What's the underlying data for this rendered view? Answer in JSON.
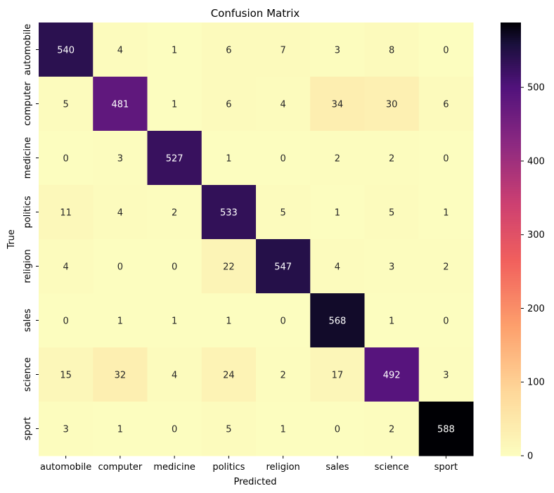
{
  "chart_data": {
    "type": "heatmap",
    "title": "Confusion Matrix",
    "xlabel": "Predicted",
    "ylabel": "True",
    "x_categories": [
      "automobile",
      "computer",
      "medicine",
      "politics",
      "religion",
      "sales",
      "science",
      "sport"
    ],
    "y_categories": [
      "automobile",
      "computer",
      "medicine",
      "politics",
      "religion",
      "sales",
      "science",
      "sport"
    ],
    "values": [
      [
        540,
        4,
        1,
        6,
        7,
        3,
        8,
        0
      ],
      [
        5,
        481,
        1,
        6,
        4,
        34,
        30,
        6
      ],
      [
        0,
        3,
        527,
        1,
        0,
        2,
        2,
        0
      ],
      [
        11,
        4,
        2,
        533,
        5,
        1,
        5,
        1
      ],
      [
        4,
        0,
        0,
        22,
        547,
        4,
        3,
        2
      ],
      [
        0,
        1,
        1,
        1,
        0,
        568,
        1,
        0
      ],
      [
        15,
        32,
        4,
        24,
        2,
        17,
        492,
        3
      ],
      [
        3,
        1,
        0,
        5,
        1,
        0,
        2,
        588
      ]
    ],
    "colorscale": "magma_r",
    "vmin": 0,
    "vmax": 588,
    "colorbar_ticks": [
      0,
      100,
      200,
      300,
      400,
      500
    ]
  }
}
